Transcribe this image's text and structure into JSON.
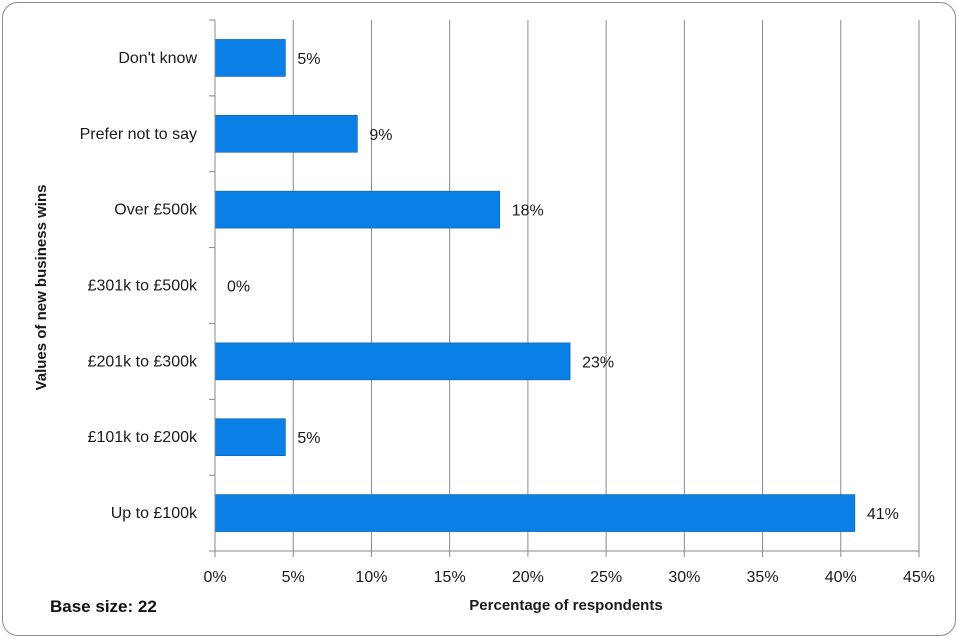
{
  "note": "Base size: 22",
  "chart_data": {
    "type": "bar",
    "orientation": "horizontal",
    "categories": [
      "Don't know",
      "Prefer not to say",
      "Over £500k",
      "£301k to £500k",
      "£201k to £300k",
      "£101k to £200k",
      "Up to £100k"
    ],
    "values": [
      4.5,
      9.1,
      18.2,
      0,
      22.7,
      4.5,
      40.9
    ],
    "data_labels": [
      "5%",
      "9%",
      "18%",
      "0%",
      "23%",
      "5%",
      "41%"
    ],
    "xlabel": "Percentage of respondents",
    "ylabel": "Values of new business wins",
    "xlim": [
      0,
      45
    ],
    "xticks": [
      "0%",
      "5%",
      "10%",
      "15%",
      "20%",
      "25%",
      "30%",
      "35%",
      "40%",
      "45%"
    ],
    "grid": "vertical",
    "bar_color": "#0a7fe6"
  }
}
